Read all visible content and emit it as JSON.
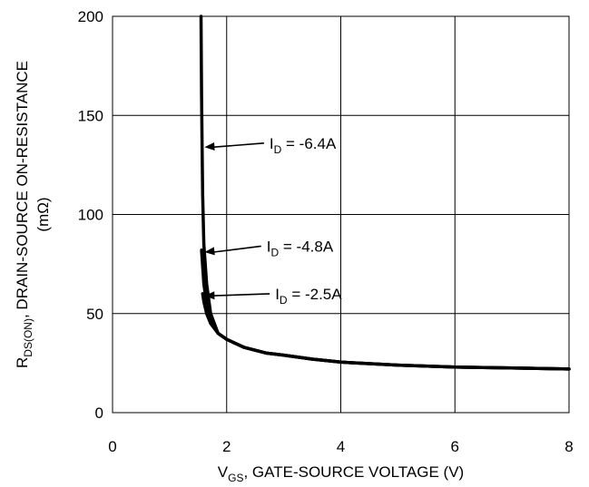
{
  "chart_data": {
    "type": "line",
    "xlabel": {
      "main": "V",
      "sub": "GS",
      "rest": ", GATE-SOURCE VOLTAGE (V)"
    },
    "ylabel": {
      "line1_main": "R",
      "line1_sub": "DS(ON)",
      "line1_rest": ", DRAIN-SOURCE ON-RESISTANCE",
      "line2": "(mΩ)"
    },
    "xlim": [
      0,
      8
    ],
    "ylim": [
      0,
      200
    ],
    "xticks": [
      0,
      2,
      4,
      6,
      8
    ],
    "yticks": [
      0,
      50,
      100,
      150,
      200
    ],
    "grid": true,
    "series": [
      {
        "name": "I_D = -6.4A",
        "x": [
          1.55,
          1.56,
          1.57,
          1.58,
          1.6,
          1.65,
          1.72,
          1.85,
          2.0,
          2.3,
          2.7,
          3.0,
          3.5,
          4.0,
          5.0,
          6.0,
          7.0,
          8.0
        ],
        "y": [
          200,
          160,
          134,
          110,
          85,
          65,
          50,
          40,
          37,
          33,
          30,
          29,
          27,
          25.5,
          24,
          23,
          22.5,
          22
        ]
      },
      {
        "name": "I_D = -4.8A",
        "x": [
          1.56,
          1.57,
          1.6,
          1.65,
          1.72,
          1.85,
          2.0,
          2.3,
          2.7,
          3.0,
          3.5,
          4.0,
          5.0,
          6.0,
          7.0,
          8.0
        ],
        "y": [
          82,
          78,
          65,
          55,
          47,
          40,
          37,
          33,
          30,
          29,
          27,
          25.5,
          24,
          23,
          22.5,
          22
        ]
      },
      {
        "name": "I_D = -2.5A",
        "x": [
          1.58,
          1.6,
          1.65,
          1.72,
          1.85,
          2.0,
          2.3,
          2.7,
          3.0,
          3.5,
          4.0,
          5.0,
          6.0,
          7.0,
          8.0
        ],
        "y": [
          60,
          56,
          50,
          45,
          40,
          37,
          33,
          30,
          29,
          27,
          25.5,
          24,
          23,
          22.5,
          22
        ]
      }
    ],
    "annotations": [
      {
        "main": "I",
        "sub": "D",
        "rest": " = -6.4A",
        "label_x": 2.75,
        "label_y": 136,
        "target_x": 1.58,
        "target_y": 134
      },
      {
        "main": "I",
        "sub": "D",
        "rest": " = -4.8A",
        "label_x": 2.7,
        "label_y": 84,
        "target_x": 1.58,
        "target_y": 81
      },
      {
        "main": "I",
        "sub": "D",
        "rest": " = -2.5A",
        "label_x": 2.85,
        "label_y": 60,
        "target_x": 1.58,
        "target_y": 59
      }
    ]
  }
}
